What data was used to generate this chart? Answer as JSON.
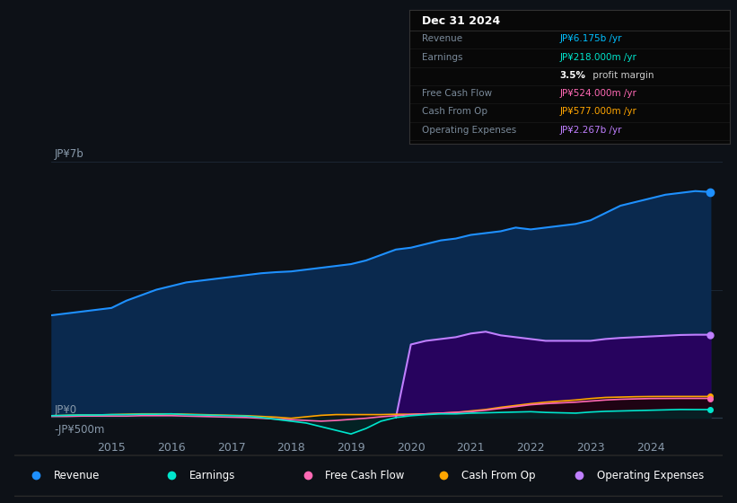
{
  "bg_color": "#0d1117",
  "plot_bg_color": "#0d1117",
  "ylabel_top": "JP¥7b",
  "ylabel_zero": "JP¥0",
  "ylabel_neg": "-JP¥500m",
  "x_ticks": [
    2015,
    2016,
    2017,
    2018,
    2019,
    2020,
    2021,
    2022,
    2023,
    2024
  ],
  "revenue_color": "#1e90ff",
  "revenue_fill": "#0a2a50",
  "earnings_color": "#00e5cc",
  "earnings_fill": "#002a2a",
  "fcf_color": "#ff69b4",
  "fcf_fill": "#200010",
  "cfop_color": "#ffa500",
  "cfop_fill": "#1a1000",
  "opex_color": "#bf7fff",
  "opex_fill": "#2a0060",
  "grid_color": "#1e2a38",
  "text_color": "#8899aa",
  "zero_line_color": "#2a3a4a",
  "revenue_data_x": [
    2014.0,
    2014.25,
    2014.5,
    2014.75,
    2015.0,
    2015.25,
    2015.5,
    2015.75,
    2016.0,
    2016.25,
    2016.5,
    2016.75,
    2017.0,
    2017.25,
    2017.5,
    2017.75,
    2018.0,
    2018.25,
    2018.5,
    2018.75,
    2019.0,
    2019.25,
    2019.5,
    2019.75,
    2020.0,
    2020.25,
    2020.5,
    2020.75,
    2021.0,
    2021.25,
    2021.5,
    2021.75,
    2022.0,
    2022.25,
    2022.5,
    2022.75,
    2023.0,
    2023.25,
    2023.5,
    2023.75,
    2024.0,
    2024.25,
    2024.5,
    2024.75,
    2025.0
  ],
  "revenue_data_y": [
    2.8,
    2.85,
    2.9,
    2.95,
    3.0,
    3.2,
    3.35,
    3.5,
    3.6,
    3.7,
    3.75,
    3.8,
    3.85,
    3.9,
    3.95,
    3.98,
    4.0,
    4.05,
    4.1,
    4.15,
    4.2,
    4.3,
    4.45,
    4.6,
    4.65,
    4.75,
    4.85,
    4.9,
    5.0,
    5.05,
    5.1,
    5.2,
    5.15,
    5.2,
    5.25,
    5.3,
    5.4,
    5.6,
    5.8,
    5.9,
    6.0,
    6.1,
    6.15,
    6.2,
    6.175
  ],
  "earnings_data_x": [
    2014.0,
    2014.25,
    2014.5,
    2014.75,
    2015.0,
    2015.25,
    2015.5,
    2015.75,
    2016.0,
    2016.25,
    2016.5,
    2016.75,
    2017.0,
    2017.25,
    2017.5,
    2017.75,
    2018.0,
    2018.25,
    2018.5,
    2018.75,
    2019.0,
    2019.25,
    2019.5,
    2019.75,
    2020.0,
    2020.25,
    2020.5,
    2020.75,
    2021.0,
    2021.25,
    2021.5,
    2021.75,
    2022.0,
    2022.25,
    2022.5,
    2022.75,
    2023.0,
    2023.25,
    2023.5,
    2023.75,
    2024.0,
    2024.25,
    2024.5,
    2024.75,
    2025.0
  ],
  "earnings_data_y": [
    0.05,
    0.06,
    0.07,
    0.07,
    0.08,
    0.08,
    0.09,
    0.09,
    0.1,
    0.08,
    0.07,
    0.06,
    0.05,
    0.04,
    0.0,
    -0.05,
    -0.1,
    -0.15,
    -0.25,
    -0.35,
    -0.45,
    -0.3,
    -0.1,
    0.0,
    0.05,
    0.08,
    0.1,
    0.1,
    0.12,
    0.13,
    0.14,
    0.15,
    0.16,
    0.14,
    0.13,
    0.12,
    0.15,
    0.17,
    0.18,
    0.19,
    0.2,
    0.21,
    0.22,
    0.218,
    0.218
  ],
  "fcf_data_x": [
    2014.0,
    2014.25,
    2014.5,
    2014.75,
    2015.0,
    2015.25,
    2015.5,
    2015.75,
    2016.0,
    2016.25,
    2016.5,
    2016.75,
    2017.0,
    2017.25,
    2017.5,
    2017.75,
    2018.0,
    2018.25,
    2018.5,
    2018.75,
    2019.0,
    2019.25,
    2019.5,
    2019.75,
    2020.0,
    2020.25,
    2020.5,
    2020.75,
    2021.0,
    2021.25,
    2021.5,
    2021.75,
    2022.0,
    2022.25,
    2022.5,
    2022.75,
    2023.0,
    2023.25,
    2023.5,
    2023.75,
    2024.0,
    2024.25,
    2024.5,
    2024.75,
    2025.0
  ],
  "fcf_data_y": [
    0.03,
    0.03,
    0.04,
    0.04,
    0.04,
    0.04,
    0.05,
    0.05,
    0.05,
    0.04,
    0.03,
    0.02,
    0.01,
    0.0,
    -0.02,
    -0.04,
    -0.06,
    -0.08,
    -0.1,
    -0.08,
    -0.05,
    -0.02,
    0.02,
    0.05,
    0.08,
    0.1,
    0.12,
    0.14,
    0.16,
    0.2,
    0.25,
    0.3,
    0.35,
    0.38,
    0.4,
    0.42,
    0.45,
    0.48,
    0.5,
    0.51,
    0.52,
    0.522,
    0.524,
    0.524,
    0.524
  ],
  "cfop_data_x": [
    2014.0,
    2014.25,
    2014.5,
    2014.75,
    2015.0,
    2015.25,
    2015.5,
    2015.75,
    2016.0,
    2016.25,
    2016.5,
    2016.75,
    2017.0,
    2017.25,
    2017.5,
    2017.75,
    2018.0,
    2018.25,
    2018.5,
    2018.75,
    2019.0,
    2019.25,
    2019.5,
    2019.75,
    2020.0,
    2020.25,
    2020.5,
    2020.75,
    2021.0,
    2021.25,
    2021.5,
    2021.75,
    2022.0,
    2022.25,
    2022.5,
    2022.75,
    2023.0,
    2023.25,
    2023.5,
    2023.75,
    2024.0,
    2024.25,
    2024.5,
    2024.75,
    2025.0
  ],
  "cfop_data_y": [
    0.05,
    0.06,
    0.07,
    0.07,
    0.08,
    0.09,
    0.1,
    0.1,
    0.1,
    0.09,
    0.08,
    0.07,
    0.06,
    0.05,
    0.03,
    0.01,
    -0.02,
    0.02,
    0.06,
    0.08,
    0.08,
    0.08,
    0.08,
    0.09,
    0.09,
    0.1,
    0.12,
    0.14,
    0.18,
    0.22,
    0.28,
    0.33,
    0.38,
    0.42,
    0.45,
    0.48,
    0.52,
    0.55,
    0.56,
    0.57,
    0.575,
    0.577,
    0.577,
    0.577,
    0.577
  ],
  "opex_data_x": [
    2019.75,
    2020.0,
    2020.25,
    2020.5,
    2020.75,
    2021.0,
    2021.25,
    2021.5,
    2021.75,
    2022.0,
    2022.25,
    2022.5,
    2022.75,
    2023.0,
    2023.25,
    2023.5,
    2023.75,
    2024.0,
    2024.25,
    2024.5,
    2024.75,
    2025.0
  ],
  "opex_data_y": [
    0.0,
    2.0,
    2.1,
    2.15,
    2.2,
    2.3,
    2.35,
    2.25,
    2.2,
    2.15,
    2.1,
    2.1,
    2.1,
    2.1,
    2.15,
    2.18,
    2.2,
    2.22,
    2.24,
    2.26,
    2.267,
    2.267
  ],
  "legend_items": [
    {
      "label": "Revenue",
      "color": "#1e90ff"
    },
    {
      "label": "Earnings",
      "color": "#00e5cc"
    },
    {
      "label": "Free Cash Flow",
      "color": "#ff69b4"
    },
    {
      "label": "Cash From Op",
      "color": "#ffa500"
    },
    {
      "label": "Operating Expenses",
      "color": "#bf7fff"
    }
  ],
  "infobox": {
    "title": "Dec 31 2024",
    "rows": [
      {
        "label": "Revenue",
        "value": "JP¥6.175b /yr",
        "value_color": "#00bfff"
      },
      {
        "label": "Earnings",
        "value": "JP¥218.000m /yr",
        "value_color": "#00e5cc"
      },
      {
        "label": "",
        "value": "3.5%",
        "value2": " profit margin",
        "value_color": "#ffffff",
        "bold": true
      },
      {
        "label": "Free Cash Flow",
        "value": "JP¥524.000m /yr",
        "value_color": "#ff69b4"
      },
      {
        "label": "Cash From Op",
        "value": "JP¥577.000m /yr",
        "value_color": "#ffa500"
      },
      {
        "label": "Operating Expenses",
        "value": "JP¥2.267b /yr",
        "value_color": "#bf7fff"
      }
    ]
  }
}
